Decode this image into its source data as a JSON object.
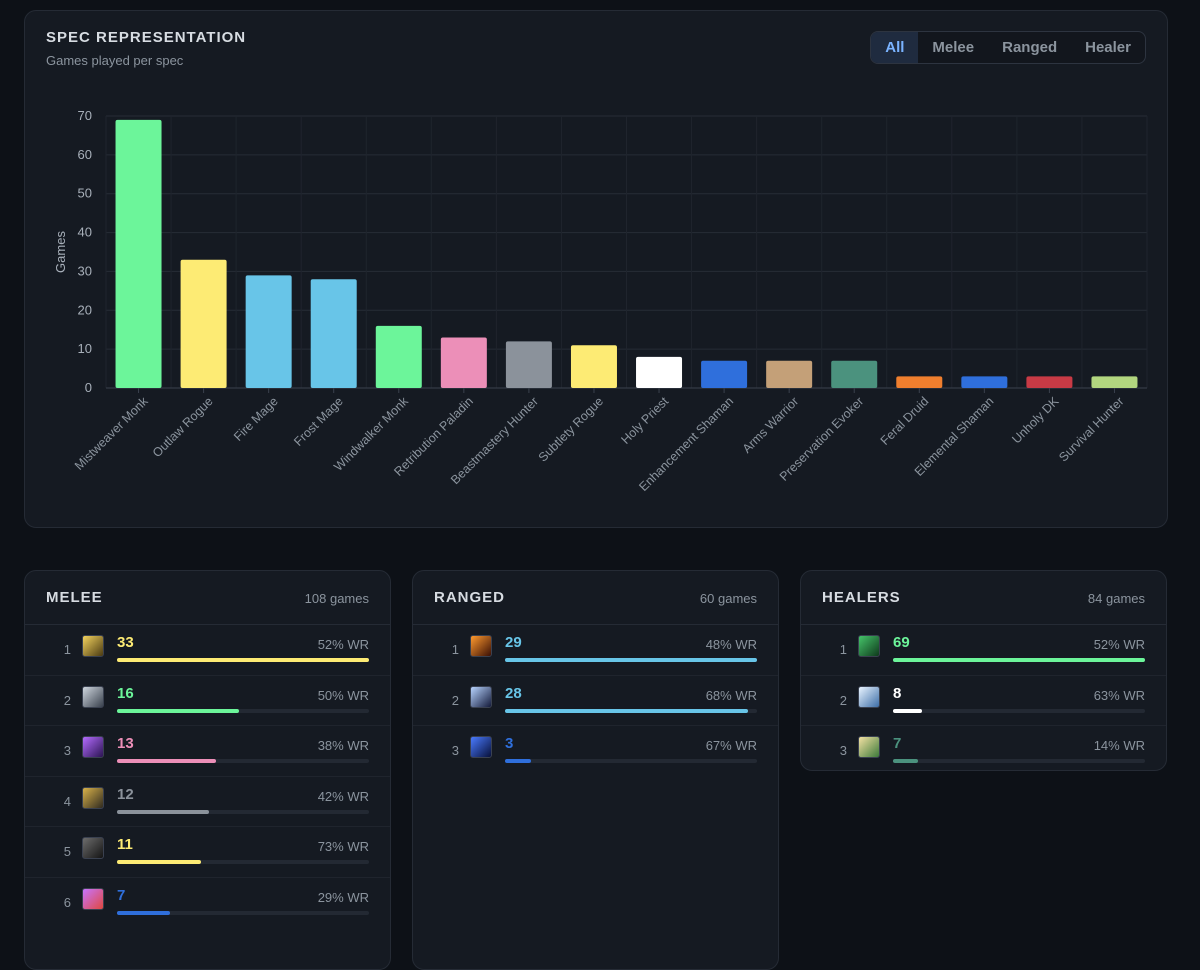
{
  "spec_card": {
    "title": "SPEC REPRESENTATION",
    "subtitle": "Games played per spec",
    "filters": [
      "All",
      "Melee",
      "Ranged",
      "Healer"
    ],
    "active_filter": "All"
  },
  "chart_data": {
    "type": "bar",
    "title": "SPEC REPRESENTATION",
    "subtitle": "Games played per spec",
    "xlabel": "",
    "ylabel": "Games",
    "ylim": [
      0,
      70
    ],
    "yticks": [
      0,
      10,
      20,
      30,
      40,
      50,
      60,
      70
    ],
    "grid": true,
    "categories": [
      "Mistweaver Monk",
      "Outlaw Rogue",
      "Fire Mage",
      "Frost Mage",
      "Windwalker Monk",
      "Retribution Paladin",
      "Beastmastery Hunter",
      "Subtlety Rogue",
      "Holy Priest",
      "Enhancement Shaman",
      "Arms Warrior",
      "Preservation Evoker",
      "Feral Druid",
      "Elemental Shaman",
      "Unholy DK",
      "Survival Hunter"
    ],
    "values": [
      69,
      33,
      29,
      28,
      16,
      13,
      12,
      11,
      8,
      7,
      7,
      7,
      3,
      3,
      3,
      3
    ],
    "colors": [
      "#6cf59a",
      "#fdeb74",
      "#68c5e8",
      "#68c5e8",
      "#6cf59a",
      "#ec8fb8",
      "#8b929b",
      "#fdeb74",
      "#ffffff",
      "#2f6fdc",
      "#c4a078",
      "#4b927e",
      "#f07f2e",
      "#2f6fdc",
      "#c83a45",
      "#b2d67f"
    ]
  },
  "roles": [
    {
      "key": "melee",
      "title": "MELEE",
      "count": "108 games",
      "rows": [
        {
          "rank": "1",
          "games": "33",
          "wr": "52% WR",
          "fill": 1.0,
          "color": "#fdeb74",
          "icon": "outlaw-rogue-icon",
          "icon_bg": "linear-gradient(135deg,#f4d35e,#4a3a12)"
        },
        {
          "rank": "2",
          "games": "16",
          "wr": "50% WR",
          "fill": 0.485,
          "color": "#6cf59a",
          "icon": "windwalker-monk-icon",
          "icon_bg": "linear-gradient(135deg,#cfd6de,#39414d)"
        },
        {
          "rank": "3",
          "games": "13",
          "wr": "38% WR",
          "fill": 0.394,
          "color": "#ec8fb8",
          "icon": "retribution-paladin-icon",
          "icon_bg": "linear-gradient(135deg,#b46cff,#2b1452)"
        },
        {
          "rank": "4",
          "games": "12",
          "wr": "42% WR",
          "fill": 0.364,
          "color": "#8b929b",
          "icon": "beastmastery-hunter-icon",
          "icon_bg": "linear-gradient(135deg,#d9b24a,#2f2a20)"
        },
        {
          "rank": "5",
          "games": "11",
          "wr": "73% WR",
          "fill": 0.333,
          "color": "#fdeb74",
          "icon": "subtlety-rogue-icon",
          "icon_bg": "linear-gradient(135deg,#6d6d6d,#141414)"
        },
        {
          "rank": "6",
          "games": "7",
          "wr": "29% WR",
          "fill": 0.212,
          "color": "#2f6fdc",
          "icon": "enhancement-shaman-icon",
          "icon_bg": "linear-gradient(135deg,#c774ff,#e0483f)"
        }
      ]
    },
    {
      "key": "ranged",
      "title": "RANGED",
      "count": "60 games",
      "rows": [
        {
          "rank": "1",
          "games": "29",
          "wr": "48% WR",
          "fill": 1.0,
          "color": "#68c5e8",
          "icon": "fire-mage-icon",
          "icon_bg": "linear-gradient(135deg,#ff9a2e,#3a0f05)"
        },
        {
          "rank": "2",
          "games": "28",
          "wr": "68% WR",
          "fill": 0.966,
          "color": "#68c5e8",
          "icon": "frost-mage-icon",
          "icon_bg": "linear-gradient(135deg,#b8d4ff,#131a3a)"
        },
        {
          "rank": "3",
          "games": "3",
          "wr": "67% WR",
          "fill": 0.103,
          "color": "#2f6fdc",
          "icon": "elemental-shaman-icon",
          "icon_bg": "linear-gradient(135deg,#4a7bff,#07103a)"
        }
      ]
    },
    {
      "key": "healers",
      "title": "HEALERS",
      "count": "84 games",
      "rows": [
        {
          "rank": "1",
          "games": "69",
          "wr": "52% WR",
          "fill": 1.0,
          "color": "#6cf59a",
          "icon": "mistweaver-monk-icon",
          "icon_bg": "linear-gradient(135deg,#45c46a,#0f3a1c)"
        },
        {
          "rank": "2",
          "games": "8",
          "wr": "63% WR",
          "fill": 0.116,
          "color": "#ffffff",
          "icon": "holy-priest-icon",
          "icon_bg": "linear-gradient(135deg,#e9f4ff,#3d6ea8)"
        },
        {
          "rank": "3",
          "games": "7",
          "wr": "14% WR",
          "fill": 0.101,
          "color": "#4b927e",
          "icon": "preservation-evoker-icon",
          "icon_bg": "linear-gradient(135deg,#f3e1a3,#3d7a3a)"
        }
      ]
    }
  ]
}
